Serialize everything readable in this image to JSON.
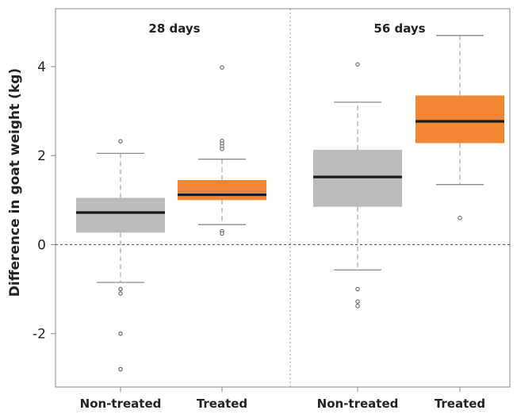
{
  "chart_data": {
    "type": "boxplot",
    "ylabel": "Difference in goat weight (kg)",
    "ylim": [
      -3.2,
      5.3
    ],
    "yticks": [
      -2,
      0,
      2,
      4
    ],
    "reference_line_y": 0,
    "panels": [
      {
        "title": "28 days",
        "groups": [
          {
            "category": "Non-treated",
            "color": "#BABBBA",
            "whisker_low": -0.85,
            "q1": 0.27,
            "median": 0.72,
            "q3": 1.05,
            "whisker_high": 2.05,
            "outliers": [
              2.32,
              -1.0,
              -1.1,
              -2.0,
              -2.8
            ]
          },
          {
            "category": "Treated",
            "color": "#F28633",
            "whisker_low": 0.45,
            "q1": 1.0,
            "median": 1.12,
            "q3": 1.45,
            "whisker_high": 1.92,
            "outliers": [
              3.98,
              2.33,
              2.27,
              2.21,
              2.15,
              0.3,
              0.25
            ]
          }
        ]
      },
      {
        "title": "56 days",
        "groups": [
          {
            "category": "Non-treated",
            "color": "#BABBBA",
            "whisker_low": -0.57,
            "q1": 0.85,
            "median": 1.52,
            "q3": 2.13,
            "whisker_high": 3.2,
            "outliers": [
              4.05,
              -1.0,
              -1.28,
              -1.38
            ]
          },
          {
            "category": "Treated",
            "color": "#F28633",
            "whisker_low": 1.35,
            "q1": 2.28,
            "median": 2.77,
            "q3": 3.35,
            "whisker_high": 4.7,
            "outliers": [
              0.6
            ]
          }
        ]
      }
    ]
  }
}
